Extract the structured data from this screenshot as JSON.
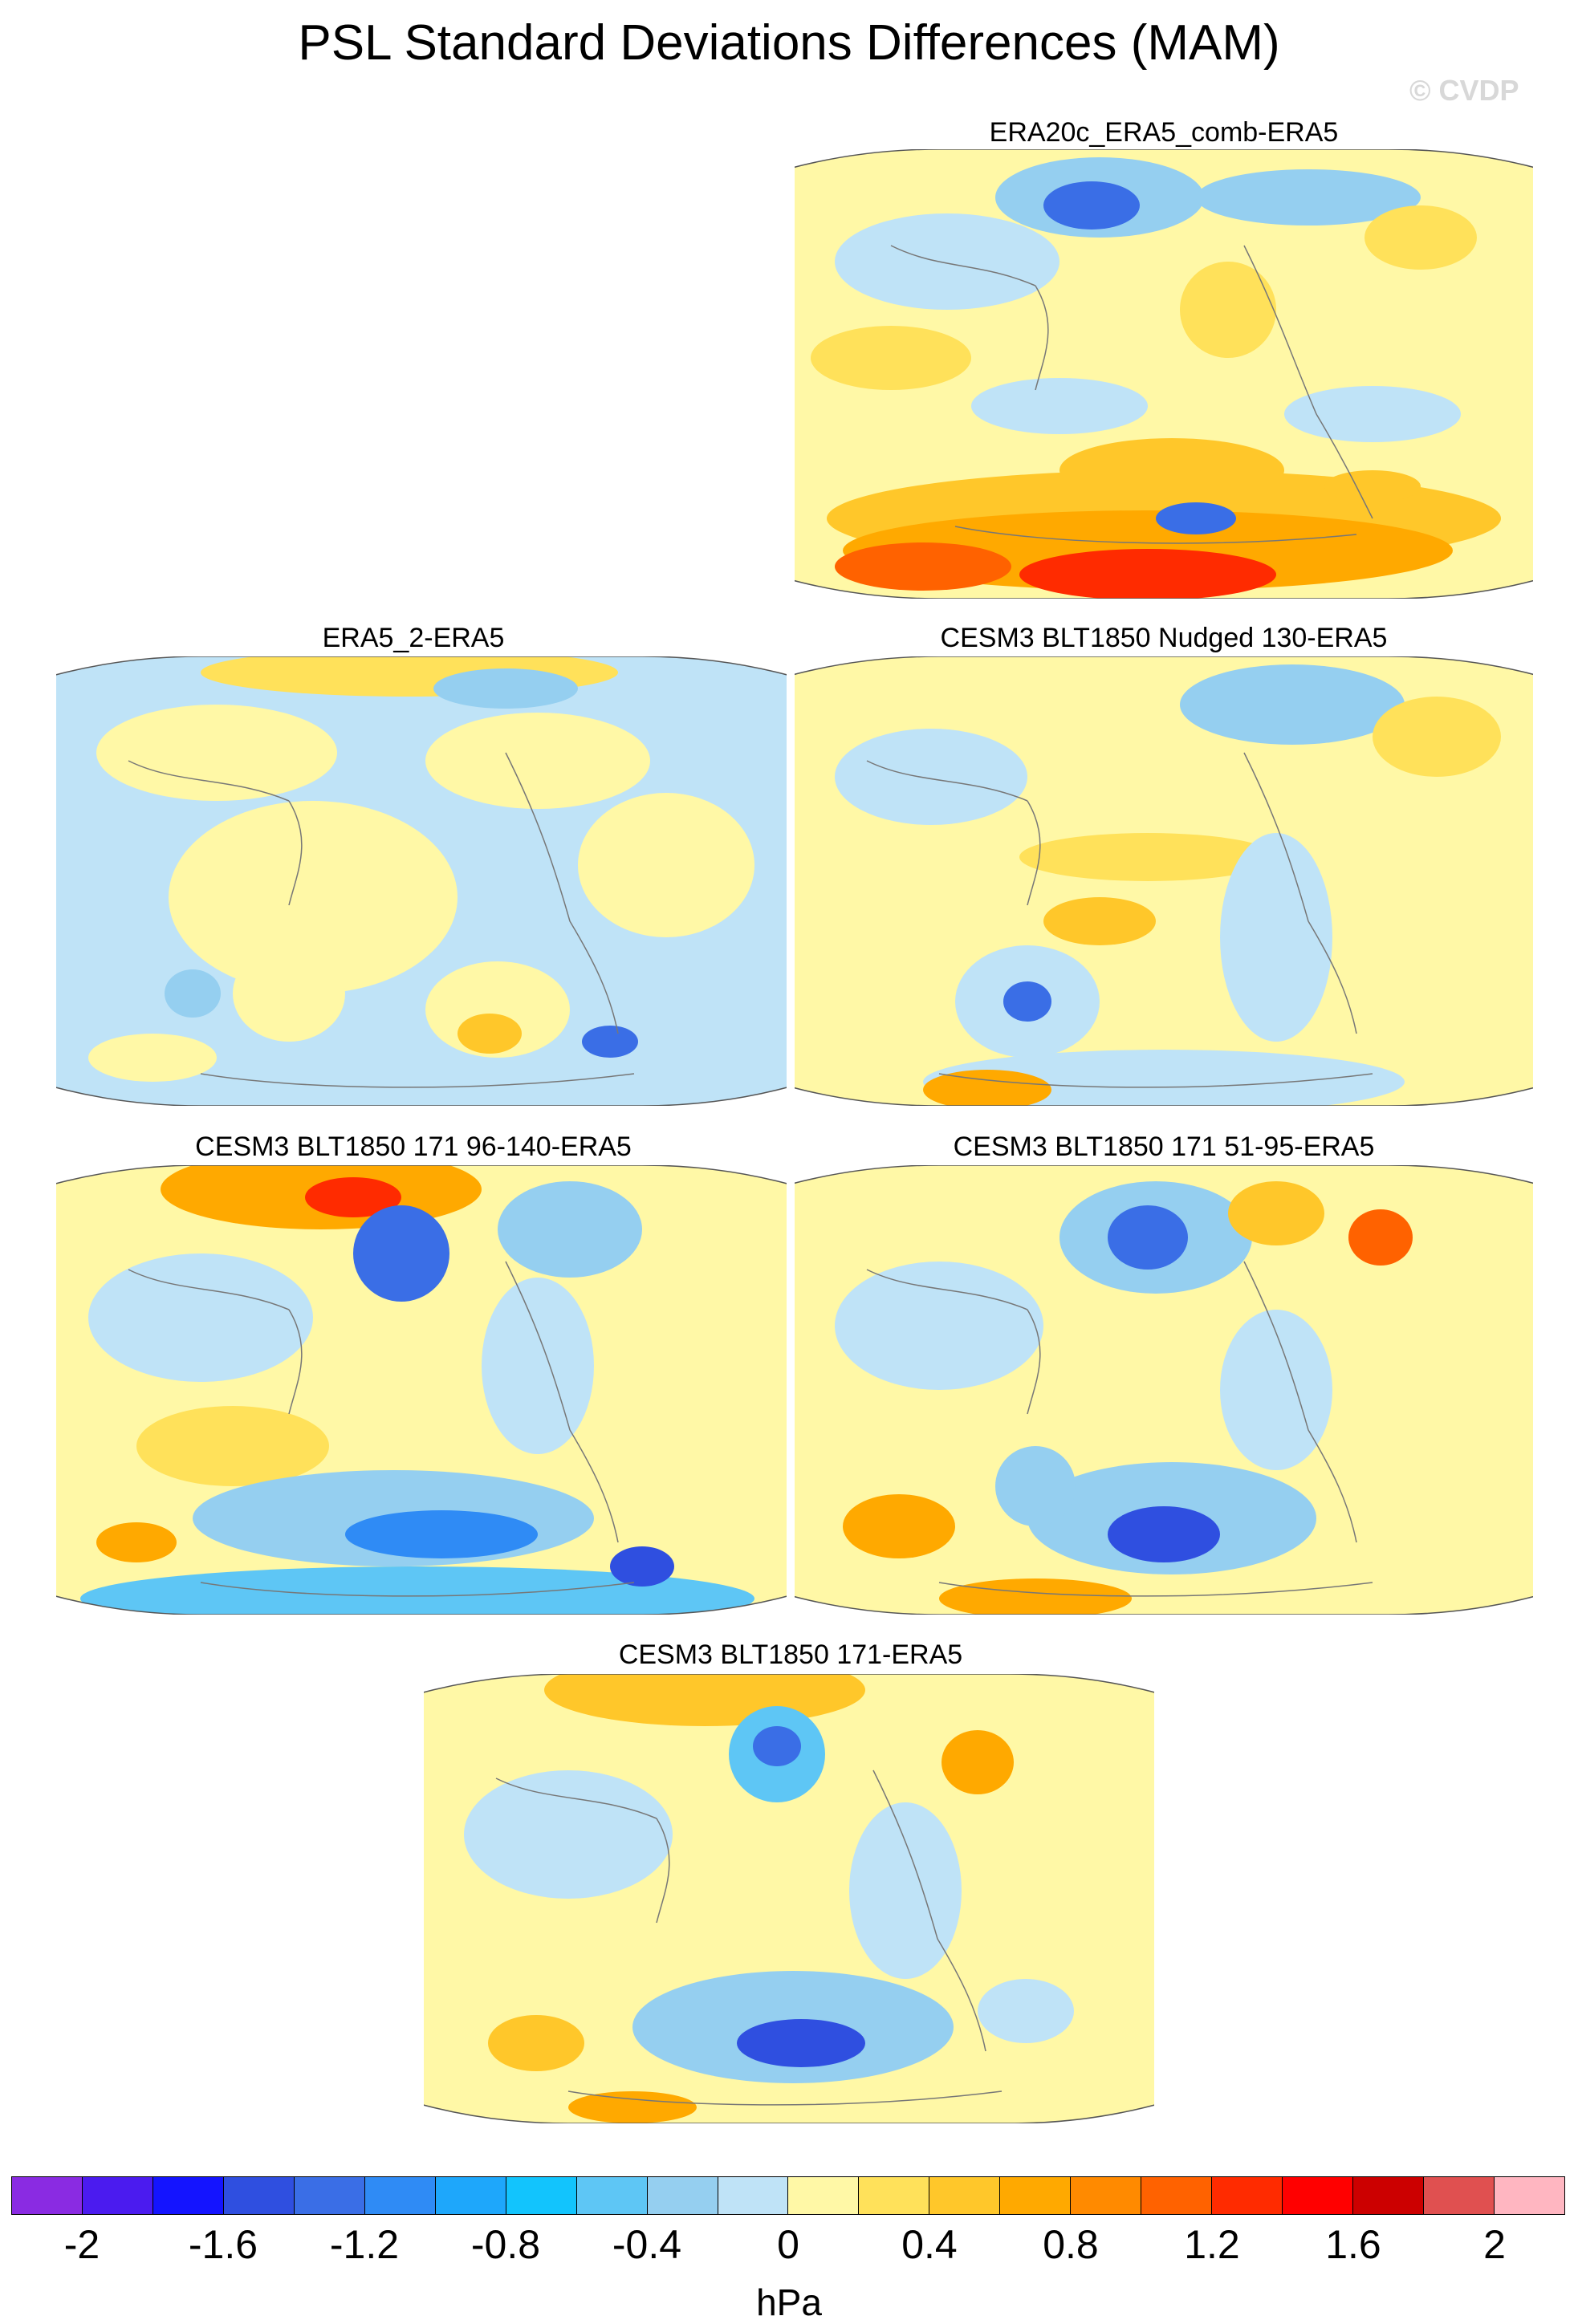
{
  "title": "PSL Standard Deviations Differences (MAM)",
  "watermark": "© CVDP",
  "panels": [
    {
      "title": "ERA20c_ERA5_comb-ERA5"
    },
    {
      "title": "ERA5_2-ERA5"
    },
    {
      "title": "CESM3 BLT1850 Nudged 130-ERA5"
    },
    {
      "title": "CESM3 BLT1850 171 96-140-ERA5"
    },
    {
      "title": "CESM3 BLT1850 171 51-95-ERA5"
    },
    {
      "title": "CESM3 BLT1850 171-ERA5"
    }
  ],
  "colorbar": {
    "units": "hPa",
    "tick_labels": [
      "-2",
      "-1.6",
      "-1.2",
      "-0.8",
      "-0.4",
      "0",
      "0.4",
      "0.8",
      "1.2",
      "1.6",
      "2"
    ],
    "colors": [
      "#8a2be2",
      "#4b1bef",
      "#1414ff",
      "#2f4fe0",
      "#3a6ee6",
      "#2f8bf5",
      "#1ea7fb",
      "#12c4fd",
      "#5ec6f5",
      "#95cff0",
      "#bfe3f7",
      "#fff8a6",
      "#ffe15a",
      "#ffc72a",
      "#ffa900",
      "#ff8a00",
      "#ff6200",
      "#ff2b00",
      "#ff0000",
      "#cc0000",
      "#e05050",
      "#ffb6c1"
    ]
  }
}
